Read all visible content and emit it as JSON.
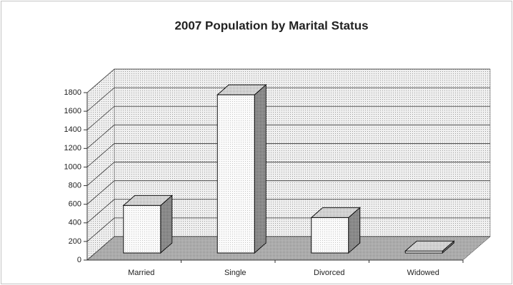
{
  "chart_data": {
    "type": "bar3d",
    "title": "2007 Population by Marital Status",
    "categories": [
      "Married",
      "Single",
      "Divorced",
      "Widowed"
    ],
    "values": [
      510,
      1700,
      380,
      20
    ],
    "ylim": [
      0,
      1800
    ],
    "yticks": [
      0,
      200,
      400,
      600,
      800,
      1000,
      1200,
      1400,
      1600,
      1800
    ],
    "grid": true
  }
}
